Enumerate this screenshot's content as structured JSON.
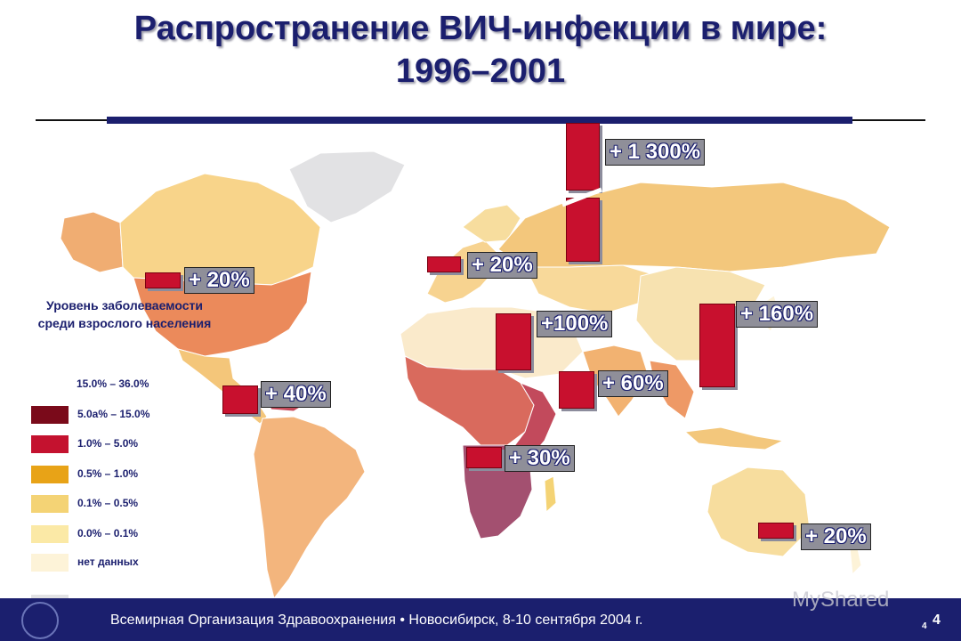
{
  "title": {
    "line1": "Распространение ВИЧ-инфекции в мире:",
    "line2": "1996–2001"
  },
  "legend": {
    "title": "Уровень заболеваемости среди взрослого населения",
    "items": [
      {
        "label": "15.0% – 36.0%",
        "color": "#7a0a1a"
      },
      {
        "label": "5.0а% – 15.0%",
        "color": "#c4122f"
      },
      {
        "label": "1.0% –   5.0%",
        "color": "#e8a317"
      },
      {
        "label": "0.5% –   1.0%",
        "color": "#f4d375"
      },
      {
        "label": "0.1% –   0.5%",
        "color": "#fbe9a6"
      },
      {
        "label": "0.0% –   0.1%",
        "color": "#fdf3d8"
      },
      {
        "label": "нет данных",
        "color": "#e2e2e4"
      }
    ]
  },
  "regions": [
    {
      "name": "north-america",
      "increase": "+ 20%"
    },
    {
      "name": "caribbean",
      "increase": "+ 40%"
    },
    {
      "name": "western-europe",
      "increase": "+ 20%"
    },
    {
      "name": "eastern-europe-central-asia",
      "increase": "+ 1 300%"
    },
    {
      "name": "north-africa-middle-east",
      "increase": "+100%"
    },
    {
      "name": "south-south-east-asia",
      "increase": "+ 60%"
    },
    {
      "name": "east-asia-pacific",
      "increase": "+ 160%"
    },
    {
      "name": "sub-saharan-africa",
      "increase": "+ 30%"
    },
    {
      "name": "australia-new-zealand",
      "increase": "+ 20%"
    }
  ],
  "colors": {
    "accent": "#1b1f6e",
    "bar": "#c8102e",
    "label_box": "#8f8f99"
  },
  "footer": {
    "text": "Всемирная Организация Здравоохранения • Новосибирск, 8-10 сентября 2004 г.",
    "page": "4",
    "page_small": "4"
  },
  "watermark": "MyShared"
}
